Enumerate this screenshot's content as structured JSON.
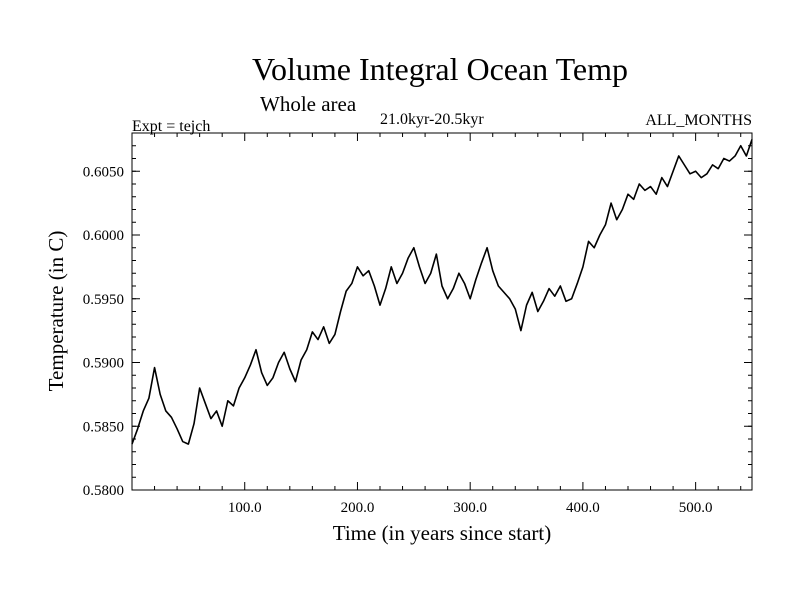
{
  "chart_data": {
    "type": "line",
    "title": "Volume Integral Ocean Temp",
    "subtitle": "Whole area",
    "period_label": "21.0kyr-20.5kyr",
    "experiment_label": "Expt = tejch",
    "months_label": "ALL_MONTHS",
    "xlabel": "Time (in years since start)",
    "ylabel": "Temperature (in C)",
    "xlim": [
      0,
      550
    ],
    "ylim": [
      0.58,
      0.608
    ],
    "x_ticks": [
      {
        "value": 100,
        "label": "100.0"
      },
      {
        "value": 200,
        "label": "200.0"
      },
      {
        "value": 300,
        "label": "300.0"
      },
      {
        "value": 400,
        "label": "400.0"
      },
      {
        "value": 500,
        "label": "500.0"
      }
    ],
    "y_ticks": [
      {
        "value": 0.58,
        "label": "0.5800"
      },
      {
        "value": 0.585,
        "label": "0.5850"
      },
      {
        "value": 0.59,
        "label": "0.5900"
      },
      {
        "value": 0.595,
        "label": "0.5950"
      },
      {
        "value": 0.6,
        "label": "0.6000"
      },
      {
        "value": 0.605,
        "label": "0.6050"
      }
    ],
    "line_color": "#000000",
    "series": [
      {
        "name": "Volume Integral Ocean Temp",
        "x": [
          0,
          5,
          10,
          15,
          20,
          25,
          30,
          35,
          40,
          45,
          50,
          55,
          60,
          65,
          70,
          75,
          80,
          85,
          90,
          95,
          100,
          105,
          110,
          115,
          120,
          125,
          130,
          135,
          140,
          145,
          150,
          155,
          160,
          165,
          170,
          175,
          180,
          185,
          190,
          195,
          200,
          205,
          210,
          215,
          220,
          225,
          230,
          235,
          240,
          245,
          250,
          255,
          260,
          265,
          270,
          275,
          280,
          285,
          290,
          295,
          300,
          305,
          310,
          315,
          320,
          325,
          330,
          335,
          340,
          345,
          350,
          355,
          360,
          365,
          370,
          375,
          380,
          385,
          390,
          395,
          400,
          405,
          410,
          415,
          420,
          425,
          430,
          435,
          440,
          445,
          450,
          455,
          460,
          465,
          470,
          475,
          480,
          485,
          490,
          495,
          500,
          505,
          510,
          515,
          520,
          525,
          530,
          535,
          540,
          545,
          550
        ],
        "values": [
          0.5836,
          0.5848,
          0.5862,
          0.5872,
          0.5896,
          0.5875,
          0.5862,
          0.5857,
          0.5848,
          0.5838,
          0.5836,
          0.5852,
          0.588,
          0.5868,
          0.5856,
          0.5862,
          0.585,
          0.587,
          0.5866,
          0.588,
          0.5888,
          0.5898,
          0.591,
          0.5892,
          0.5882,
          0.5888,
          0.59,
          0.5908,
          0.5895,
          0.5885,
          0.5902,
          0.591,
          0.5924,
          0.5918,
          0.5928,
          0.5915,
          0.5922,
          0.594,
          0.5956,
          0.5962,
          0.5975,
          0.5968,
          0.5972,
          0.596,
          0.5945,
          0.5958,
          0.5975,
          0.5962,
          0.597,
          0.5982,
          0.599,
          0.5975,
          0.5962,
          0.597,
          0.5985,
          0.596,
          0.595,
          0.5958,
          0.597,
          0.5962,
          0.595,
          0.5965,
          0.5978,
          0.599,
          0.5972,
          0.596,
          0.5955,
          0.595,
          0.5942,
          0.5925,
          0.5945,
          0.5955,
          0.594,
          0.5948,
          0.5958,
          0.5952,
          0.596,
          0.5948,
          0.595,
          0.5962,
          0.5975,
          0.5995,
          0.599,
          0.6,
          0.6008,
          0.6025,
          0.6012,
          0.602,
          0.6032,
          0.6028,
          0.604,
          0.6035,
          0.6038,
          0.6032,
          0.6045,
          0.6038,
          0.605,
          0.6062,
          0.6055,
          0.6048,
          0.605,
          0.6045,
          0.6048,
          0.6055,
          0.6052,
          0.606,
          0.6058,
          0.6062,
          0.607,
          0.6062,
          0.6075
        ]
      }
    ]
  }
}
